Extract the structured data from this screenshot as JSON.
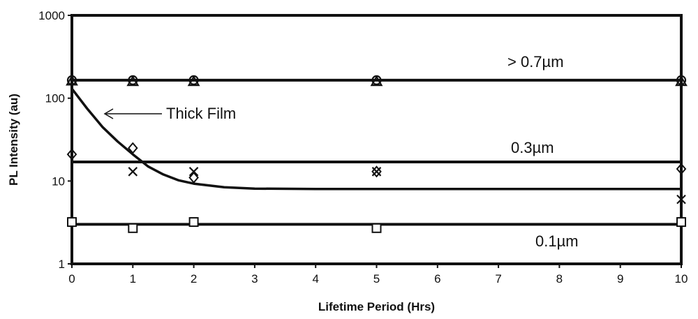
{
  "chart_data": {
    "type": "line",
    "title": "",
    "xlabel": "Lifetime Period (Hrs)",
    "ylabel": "PL Intensity (au)",
    "xlim": [
      0,
      10
    ],
    "ylim": [
      1,
      1000
    ],
    "yscale": "log",
    "grid": false,
    "x_ticks": [
      "0",
      "1",
      "2",
      "3",
      "4",
      "5",
      "6",
      "7",
      "8",
      "9",
      "10"
    ],
    "y_ticks": [
      "1",
      "10",
      "100",
      "1000"
    ],
    "trend_lines": [
      {
        "label": "> 0.7µm",
        "y": 165
      },
      {
        "label": "0.3µm",
        "y": 17
      },
      {
        "label": "0.1µm",
        "y": 3.0
      }
    ],
    "thick_film_curve": {
      "label": "Thick Film",
      "points": [
        [
          0,
          130
        ],
        [
          0.25,
          75
        ],
        [
          0.5,
          45
        ],
        [
          0.75,
          30
        ],
        [
          1,
          21
        ],
        [
          1.25,
          15
        ],
        [
          1.5,
          12
        ],
        [
          1.75,
          10.2
        ],
        [
          2,
          9.3
        ],
        [
          2.5,
          8.4
        ],
        [
          3,
          8.1
        ],
        [
          4,
          8
        ],
        [
          5,
          8
        ],
        [
          10,
          8
        ]
      ]
    },
    "series": [
      {
        "marker": "circle",
        "points": [
          [
            0,
            165
          ],
          [
            1,
            165
          ],
          [
            2,
            165
          ],
          [
            5,
            165
          ],
          [
            10,
            165
          ]
        ]
      },
      {
        "marker": "triangle",
        "points": [
          [
            0,
            160
          ],
          [
            1,
            158
          ],
          [
            2,
            158
          ],
          [
            5,
            158
          ],
          [
            10,
            158
          ]
        ]
      },
      {
        "marker": "diamond",
        "points": [
          [
            0,
            21
          ],
          [
            1,
            25
          ],
          [
            2,
            11
          ],
          [
            5,
            13
          ],
          [
            10,
            14
          ]
        ]
      },
      {
        "marker": "x",
        "points": [
          [
            1,
            13
          ],
          [
            2,
            13
          ],
          [
            5,
            13
          ],
          [
            10,
            6
          ]
        ]
      },
      {
        "marker": "square",
        "points": [
          [
            0,
            3.2
          ],
          [
            1,
            2.7
          ],
          [
            2,
            3.2
          ],
          [
            5,
            2.7
          ],
          [
            10,
            3.2
          ]
        ]
      }
    ],
    "colors": {
      "ink": "#111111",
      "background": "#ffffff"
    }
  }
}
